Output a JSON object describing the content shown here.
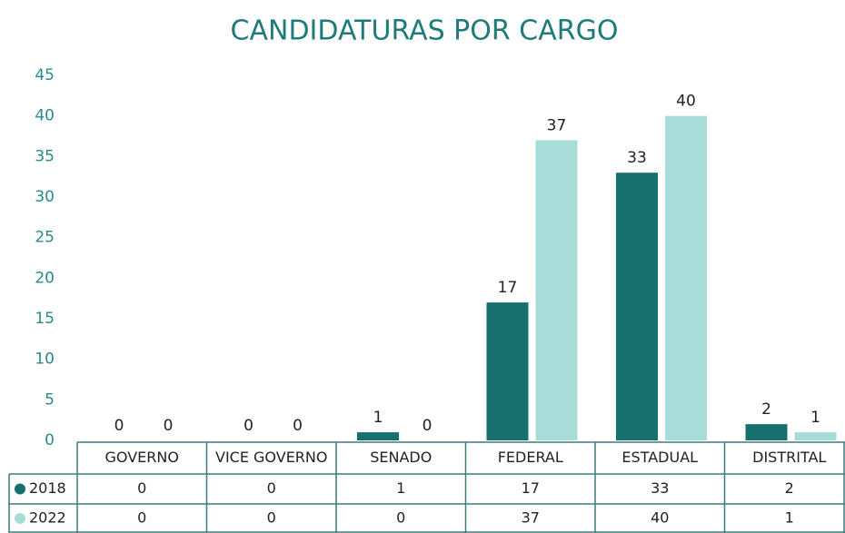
{
  "chart_data": {
    "type": "bar",
    "title": "CANDIDATURAS POR CARGO",
    "categories": [
      "GOVERNO",
      "VICE GOVERNO",
      "SENADO",
      "FEDERAL",
      "ESTADUAL",
      "DISTRITAL"
    ],
    "series": [
      {
        "name": "2018",
        "color": "#17706e",
        "values": [
          0,
          0,
          1,
          17,
          33,
          2
        ]
      },
      {
        "name": "2022",
        "color": "#a8dcd9",
        "values": [
          0,
          0,
          0,
          37,
          40,
          1
        ]
      }
    ],
    "ylim": [
      0,
      45
    ],
    "yticks": [
      0,
      5,
      10,
      15,
      20,
      25,
      30,
      35,
      40,
      45
    ],
    "grid": false
  }
}
